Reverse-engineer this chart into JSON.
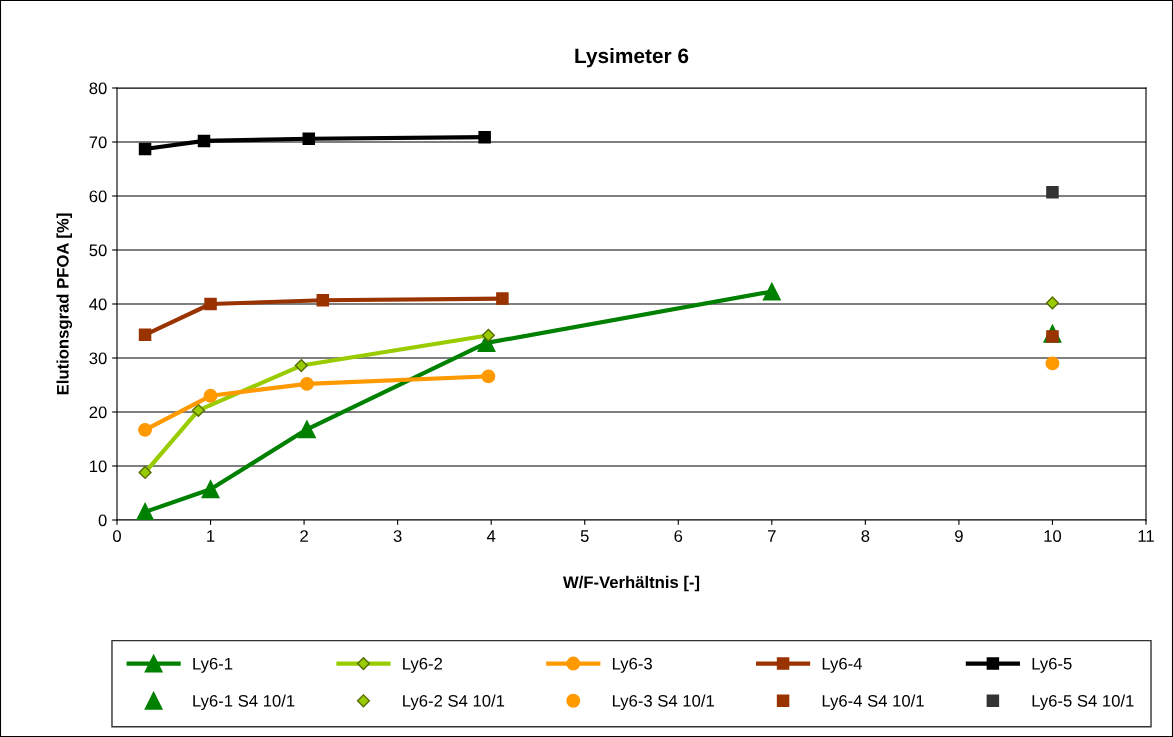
{
  "chart_data": {
    "type": "line",
    "title": "Lysimeter 6",
    "xlabel": "W/F-Verhältnis [-]",
    "ylabel": "Elutionsgrad PFOA [%]",
    "xlim": [
      0,
      11
    ],
    "xticks": [
      0,
      1,
      2,
      3,
      4,
      5,
      6,
      7,
      8,
      9,
      10,
      11
    ],
    "ylim": [
      0,
      80
    ],
    "yticks": [
      0,
      10,
      20,
      30,
      40,
      50,
      60,
      70,
      80
    ],
    "grid": "y",
    "legend": "bottom",
    "series": [
      {
        "name": "Ly6-1",
        "color": "#008000",
        "marker": "triangle",
        "x": [
          0.3,
          1,
          2.03,
          3.95,
          7
        ],
        "values": [
          1.5,
          5.7,
          16.8,
          32.8,
          42.3
        ]
      },
      {
        "name": "Ly6-1 S4 10/1",
        "type": "scatter",
        "color": "#008000",
        "marker": "triangle",
        "x": [
          10
        ],
        "values": [
          34.5
        ]
      },
      {
        "name": "Ly6-2",
        "color": "#99cc00",
        "marker": "diamond",
        "x": [
          0.3,
          0.87,
          1.97,
          3.97
        ],
        "values": [
          8.8,
          20.3,
          28.6,
          34.2
        ]
      },
      {
        "name": "Ly6-2 S4 10/1",
        "type": "scatter",
        "color": "#99cc00",
        "marker": "diamond",
        "x": [
          10
        ],
        "values": [
          40.2
        ]
      },
      {
        "name": "Ly6-3",
        "color": "#ff9900",
        "marker": "circle",
        "x": [
          0.3,
          1,
          2.03,
          3.97
        ],
        "values": [
          16.7,
          23,
          25.2,
          26.6
        ]
      },
      {
        "name": "Ly6-3 S4 10/1",
        "type": "scatter",
        "color": "#ff9900",
        "marker": "circle",
        "x": [
          10
        ],
        "values": [
          29
        ]
      },
      {
        "name": "Ly6-4",
        "color": "#993300",
        "marker": "square",
        "x": [
          0.3,
          1,
          2.2,
          4.12
        ],
        "values": [
          34.3,
          40,
          40.7,
          41
        ]
      },
      {
        "name": "Ly6-4 S4 10/1",
        "type": "scatter",
        "color": "#993300",
        "marker": "square",
        "x": [
          10
        ],
        "values": [
          34
        ]
      },
      {
        "name": "Ly6-5",
        "color": "#000000",
        "marker": "square",
        "x": [
          0.3,
          0.93,
          2.05,
          3.93
        ],
        "values": [
          68.7,
          70.2,
          70.6,
          70.9
        ]
      },
      {
        "name": "Ly6-5 S4 10/1",
        "type": "scatter",
        "color": "#333333",
        "marker": "square",
        "x": [
          10
        ],
        "values": [
          60.7
        ]
      }
    ]
  }
}
